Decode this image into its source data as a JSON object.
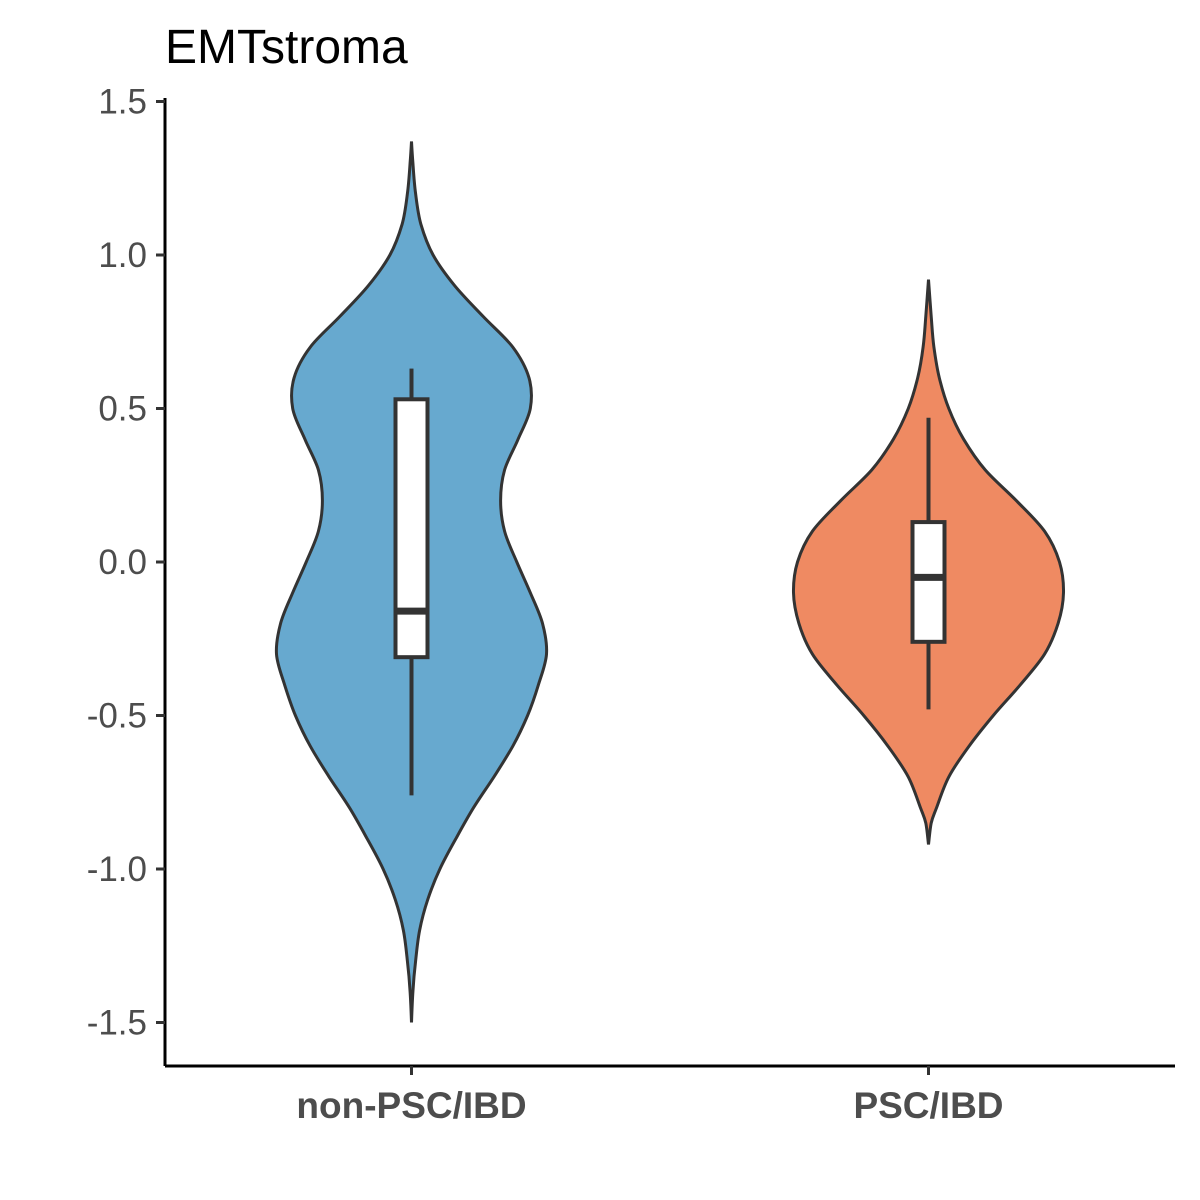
{
  "chart_data": {
    "type": "violin",
    "title": "EMTstroma",
    "xlabel": "",
    "ylabel": "",
    "ylim": [
      -1.65,
      1.55
    ],
    "yticks": [
      1.5,
      1.0,
      0.5,
      0.0,
      -0.5,
      -1.0,
      -1.5
    ],
    "ytick_labels": [
      "1.5",
      "1.0",
      "0.5",
      "0.0",
      "-0.5",
      "-1.0",
      "-1.5"
    ],
    "categories": [
      "non-PSC/IBD",
      "PSC/IBD"
    ],
    "grid": false,
    "legend": "none",
    "series": [
      {
        "category": "non-PSC/IBD",
        "color": "#67A9CF",
        "box": {
          "whisker_low": -0.76,
          "q1": -0.31,
          "median": -0.16,
          "q3": 0.53,
          "whisker_high": 0.63
        },
        "violin_range": [
          -1.5,
          1.37
        ],
        "density": [
          [
            -1.5,
            0.0
          ],
          [
            -1.4,
            0.01
          ],
          [
            -1.3,
            0.03
          ],
          [
            -1.2,
            0.06
          ],
          [
            -1.1,
            0.12
          ],
          [
            -1.0,
            0.21
          ],
          [
            -0.9,
            0.33
          ],
          [
            -0.8,
            0.46
          ],
          [
            -0.7,
            0.61
          ],
          [
            -0.6,
            0.75
          ],
          [
            -0.5,
            0.86
          ],
          [
            -0.4,
            0.94
          ],
          [
            -0.3,
            1.0
          ],
          [
            -0.2,
            0.97
          ],
          [
            -0.1,
            0.88
          ],
          [
            0.0,
            0.78
          ],
          [
            0.1,
            0.69
          ],
          [
            0.2,
            0.66
          ],
          [
            0.3,
            0.69
          ],
          [
            0.4,
            0.79
          ],
          [
            0.5,
            0.88
          ],
          [
            0.6,
            0.87
          ],
          [
            0.7,
            0.75
          ],
          [
            0.8,
            0.53
          ],
          [
            0.9,
            0.32
          ],
          [
            1.0,
            0.16
          ],
          [
            1.1,
            0.07
          ],
          [
            1.2,
            0.03
          ],
          [
            1.3,
            0.01
          ],
          [
            1.37,
            0.0
          ]
        ]
      },
      {
        "category": "PSC/IBD",
        "color": "#EF8A62",
        "box": {
          "whisker_low": -0.48,
          "q1": -0.26,
          "median": -0.05,
          "q3": 0.13,
          "whisker_high": 0.47
        },
        "violin_range": [
          -0.92,
          0.92
        ],
        "density": [
          [
            -0.92,
            0.0
          ],
          [
            -0.85,
            0.02
          ],
          [
            -0.8,
            0.06
          ],
          [
            -0.7,
            0.15
          ],
          [
            -0.6,
            0.3
          ],
          [
            -0.5,
            0.48
          ],
          [
            -0.4,
            0.68
          ],
          [
            -0.3,
            0.86
          ],
          [
            -0.2,
            0.96
          ],
          [
            -0.1,
            1.0
          ],
          [
            0.0,
            0.97
          ],
          [
            0.1,
            0.86
          ],
          [
            0.2,
            0.65
          ],
          [
            0.3,
            0.42
          ],
          [
            0.4,
            0.26
          ],
          [
            0.5,
            0.15
          ],
          [
            0.6,
            0.08
          ],
          [
            0.7,
            0.04
          ],
          [
            0.8,
            0.02
          ],
          [
            0.92,
            0.0
          ]
        ]
      }
    ]
  }
}
